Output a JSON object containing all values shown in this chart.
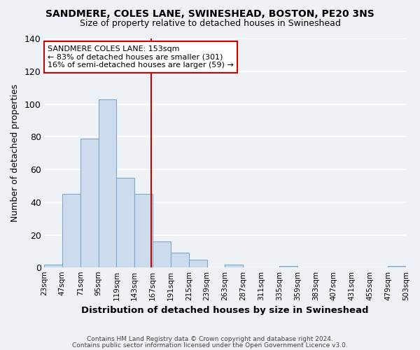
{
  "title": "SANDMERE, COLES LANE, SWINESHEAD, BOSTON, PE20 3NS",
  "subtitle": "Size of property relative to detached houses in Swineshead",
  "xlabel": "Distribution of detached houses by size in Swineshead",
  "ylabel": "Number of detached properties",
  "bar_color": "#ccdcec",
  "bar_edge_color": "#7ba8cc",
  "background_color": "#eef2f7",
  "grid_color": "white",
  "bin_labels": [
    "23sqm",
    "47sqm",
    "71sqm",
    "95sqm",
    "119sqm",
    "143sqm",
    "167sqm",
    "191sqm",
    "215sqm",
    "239sqm",
    "263sqm",
    "287sqm",
    "311sqm",
    "335sqm",
    "359sqm",
    "383sqm",
    "407sqm",
    "431sqm",
    "455sqm",
    "479sqm",
    "503sqm"
  ],
  "values": [
    2,
    45,
    79,
    103,
    55,
    45,
    16,
    9,
    5,
    0,
    2,
    0,
    0,
    1,
    0,
    0,
    0,
    0,
    0,
    1
  ],
  "ylim": [
    0,
    140
  ],
  "yticks": [
    0,
    20,
    40,
    60,
    80,
    100,
    120,
    140
  ],
  "red_line_x": 5.42,
  "annotation_box_text": "SANDMERE COLES LANE: 153sqm\n← 83% of detached houses are smaller (301)\n16% of semi-detached houses are larger (59) →",
  "annotation_box_edge_color": "#cc0000",
  "annotation_line_color": "#cc0000",
  "footer_line1": "Contains HM Land Registry data © Crown copyright and database right 2024.",
  "footer_line2": "Contains public sector information licensed under the Open Government Licence v3.0."
}
